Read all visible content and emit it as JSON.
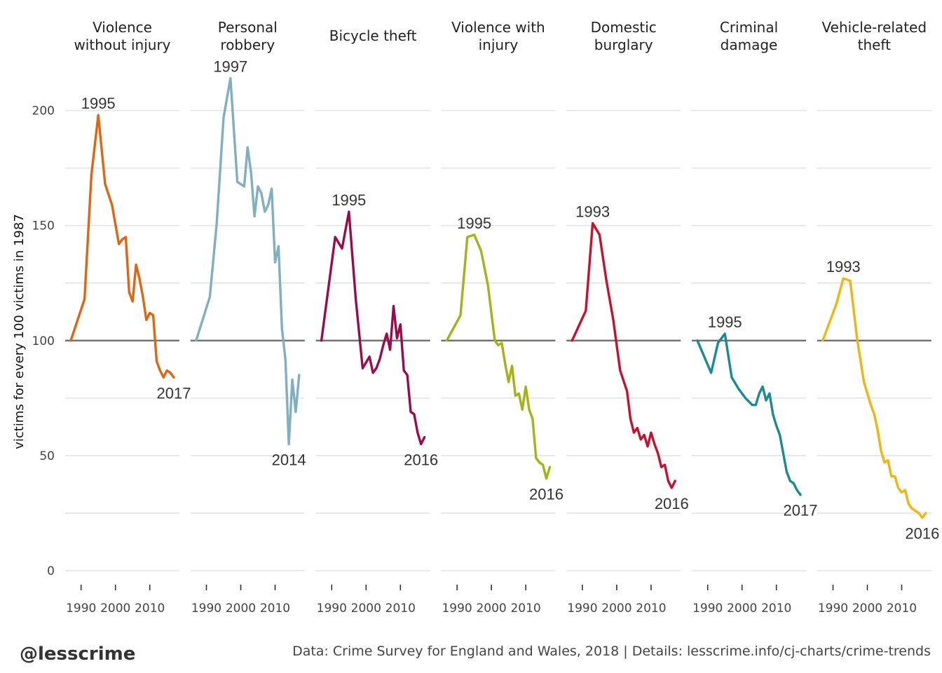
{
  "chart_data": {
    "type": "line",
    "ylabel": "victims for every 100 victims in 1987",
    "ylim": [
      0,
      220
    ],
    "xlim": [
      1987,
      2017
    ],
    "y_ticks": [
      "0",
      "50",
      "100",
      "150",
      "200"
    ],
    "x_ticks": [
      "1990",
      "2000",
      "2010"
    ],
    "reference_line": 100,
    "grid": true,
    "panels": [
      {
        "title": "Violence\nwithout injury",
        "color": "#E06412",
        "peak_label": "1995",
        "peak_year": 1995,
        "peak_value": 198,
        "end_label": "2017",
        "end_year": 2017,
        "end_value": 84,
        "points": [
          [
            1987,
            100
          ],
          [
            1991,
            118
          ],
          [
            1993,
            172
          ],
          [
            1995,
            198
          ],
          [
            1997,
            168
          ],
          [
            1999,
            159
          ],
          [
            2001,
            142
          ],
          [
            2002,
            144
          ],
          [
            2003,
            145
          ],
          [
            2004,
            121
          ],
          [
            2005,
            117
          ],
          [
            2006,
            133
          ],
          [
            2007,
            127
          ],
          [
            2008,
            119
          ],
          [
            2009,
            109
          ],
          [
            2010,
            112
          ],
          [
            2011,
            111
          ],
          [
            2012,
            91
          ],
          [
            2013,
            87
          ],
          [
            2014,
            84
          ],
          [
            2015,
            87
          ],
          [
            2016,
            86
          ],
          [
            2017,
            84
          ]
        ]
      },
      {
        "title": "Personal\nrobbery",
        "color": "#7FAFC0",
        "peak_label": "1997",
        "peak_year": 1997,
        "peak_value": 214,
        "end_label": "2014",
        "end_year": 2014,
        "end_value": 55,
        "points": [
          [
            1987,
            100
          ],
          [
            1991,
            119
          ],
          [
            1993,
            151
          ],
          [
            1995,
            197
          ],
          [
            1997,
            214
          ],
          [
            1999,
            169
          ],
          [
            2001,
            167
          ],
          [
            2002,
            184
          ],
          [
            2003,
            173
          ],
          [
            2004,
            154
          ],
          [
            2005,
            167
          ],
          [
            2006,
            164
          ],
          [
            2007,
            156
          ],
          [
            2008,
            159
          ],
          [
            2009,
            166
          ],
          [
            2010,
            134
          ],
          [
            2011,
            141
          ],
          [
            2012,
            105
          ],
          [
            2013,
            92
          ],
          [
            2014,
            55
          ],
          [
            2015,
            83
          ],
          [
            2016,
            69
          ],
          [
            2017,
            85
          ]
        ]
      },
      {
        "title": "Bicycle theft",
        "color": "#9B0B4B",
        "peak_label": "1995",
        "peak_year": 1995,
        "peak_value": 156,
        "end_label": "2016",
        "end_year": 2016,
        "end_value": 55,
        "points": [
          [
            1987,
            100
          ],
          [
            1991,
            145
          ],
          [
            1993,
            140
          ],
          [
            1995,
            156
          ],
          [
            1997,
            118
          ],
          [
            1999,
            88
          ],
          [
            2001,
            93
          ],
          [
            2002,
            86
          ],
          [
            2003,
            88
          ],
          [
            2004,
            92
          ],
          [
            2005,
            98
          ],
          [
            2006,
            103
          ],
          [
            2007,
            96
          ],
          [
            2008,
            115
          ],
          [
            2009,
            101
          ],
          [
            2010,
            107
          ],
          [
            2011,
            87
          ],
          [
            2012,
            85
          ],
          [
            2013,
            69
          ],
          [
            2014,
            68
          ],
          [
            2015,
            60
          ],
          [
            2016,
            55
          ],
          [
            2017,
            58
          ]
        ]
      },
      {
        "title": "Violence with\ninjury",
        "color": "#A3B418",
        "peak_label": "1995",
        "peak_year": 1995,
        "peak_value": 146,
        "end_label": "2016",
        "end_year": 2016,
        "end_value": 40,
        "points": [
          [
            1987,
            100
          ],
          [
            1991,
            111
          ],
          [
            1993,
            145
          ],
          [
            1995,
            146
          ],
          [
            1997,
            139
          ],
          [
            1999,
            124
          ],
          [
            2001,
            100
          ],
          [
            2002,
            98
          ],
          [
            2003,
            99
          ],
          [
            2004,
            90
          ],
          [
            2005,
            82
          ],
          [
            2006,
            89
          ],
          [
            2007,
            76
          ],
          [
            2008,
            77
          ],
          [
            2009,
            70
          ],
          [
            2010,
            80
          ],
          [
            2011,
            70
          ],
          [
            2012,
            66
          ],
          [
            2013,
            49
          ],
          [
            2014,
            47
          ],
          [
            2015,
            46
          ],
          [
            2016,
            40
          ],
          [
            2017,
            45
          ]
        ]
      },
      {
        "title": "Domestic\nburglary",
        "color": "#C8102E",
        "peak_label": "1993",
        "peak_year": 1993,
        "peak_value": 151,
        "end_label": "2016",
        "end_year": 2016,
        "end_value": 36,
        "points": [
          [
            1987,
            100
          ],
          [
            1991,
            113
          ],
          [
            1993,
            151
          ],
          [
            1995,
            146
          ],
          [
            1997,
            126
          ],
          [
            1999,
            109
          ],
          [
            2001,
            87
          ],
          [
            2003,
            78
          ],
          [
            2004,
            66
          ],
          [
            2005,
            60
          ],
          [
            2006,
            62
          ],
          [
            2007,
            57
          ],
          [
            2008,
            59
          ],
          [
            2009,
            54
          ],
          [
            2010,
            60
          ],
          [
            2011,
            55
          ],
          [
            2012,
            51
          ],
          [
            2013,
            45
          ],
          [
            2014,
            46
          ],
          [
            2015,
            39
          ],
          [
            2016,
            36
          ],
          [
            2017,
            39
          ]
        ]
      },
      {
        "title": "Criminal\ndamage",
        "color": "#1A8A95",
        "peak_label": "1995",
        "peak_year": 1995,
        "peak_value": 103,
        "end_label": "2017",
        "end_year": 2017,
        "end_value": 33,
        "points": [
          [
            1987,
            100
          ],
          [
            1991,
            86
          ],
          [
            1993,
            99
          ],
          [
            1995,
            103
          ],
          [
            1997,
            84
          ],
          [
            1999,
            79
          ],
          [
            2001,
            75
          ],
          [
            2003,
            72
          ],
          [
            2004,
            72
          ],
          [
            2005,
            77
          ],
          [
            2006,
            80
          ],
          [
            2007,
            74
          ],
          [
            2008,
            77
          ],
          [
            2009,
            68
          ],
          [
            2010,
            63
          ],
          [
            2011,
            59
          ],
          [
            2012,
            51
          ],
          [
            2013,
            43
          ],
          [
            2014,
            39
          ],
          [
            2015,
            38
          ],
          [
            2016,
            35
          ],
          [
            2017,
            33
          ]
        ]
      },
      {
        "title": "Vehicle-related\ntheft",
        "color": "#F2B50F",
        "peak_label": "1993",
        "peak_year": 1993,
        "peak_value": 127,
        "end_label": "2016",
        "end_year": 2016,
        "end_value": 23,
        "points": [
          [
            1987,
            100
          ],
          [
            1991,
            116
          ],
          [
            1993,
            127
          ],
          [
            1995,
            126
          ],
          [
            1997,
            101
          ],
          [
            1999,
            82
          ],
          [
            2001,
            72
          ],
          [
            2002,
            68
          ],
          [
            2003,
            61
          ],
          [
            2004,
            52
          ],
          [
            2005,
            47
          ],
          [
            2006,
            48
          ],
          [
            2007,
            41
          ],
          [
            2008,
            41
          ],
          [
            2009,
            36
          ],
          [
            2010,
            34
          ],
          [
            2011,
            35
          ],
          [
            2012,
            29
          ],
          [
            2013,
            27
          ],
          [
            2014,
            26
          ],
          [
            2015,
            25
          ],
          [
            2016,
            23
          ],
          [
            2017,
            25
          ]
        ]
      }
    ]
  },
  "footer": {
    "handle": "@lesscrime",
    "source": "Data: Crime Survey for England and Wales, 2018 | Details: lesscrime.info/cj-charts/crime-trends"
  }
}
